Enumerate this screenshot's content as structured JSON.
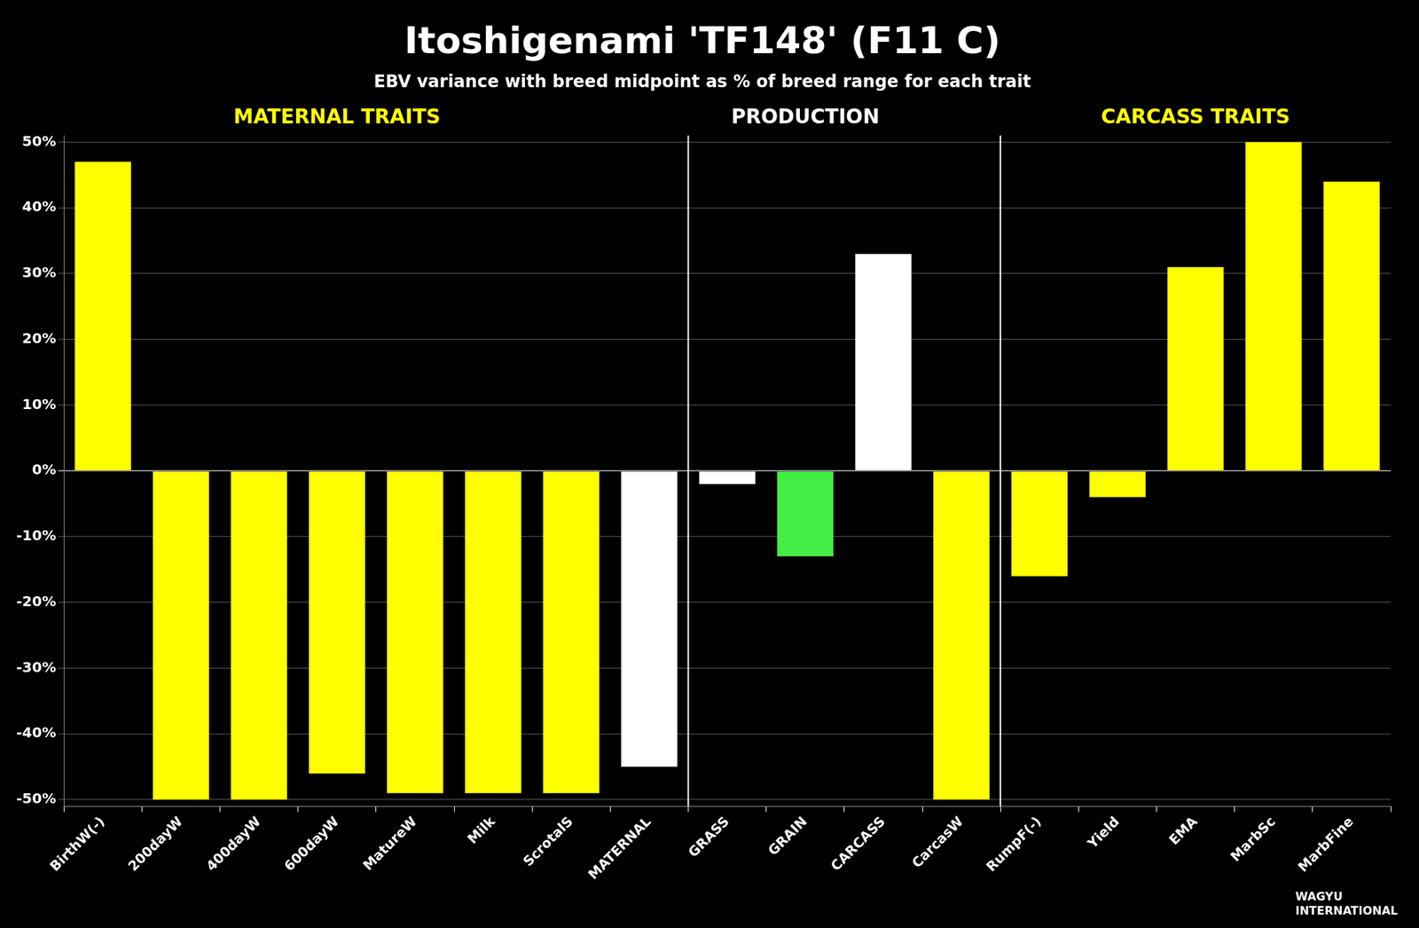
{
  "chart_data": {
    "type": "bar",
    "title": "Itoshigenami 'TF148' (F11 C)",
    "subtitle": "EBV variance with breed midpoint as % of breed range for each trait",
    "categories": [
      "BirthW(-)",
      "200dayW",
      "400dayW",
      "600dayW",
      "MatureW",
      "Milk",
      "ScrotalS",
      "MATERNAL",
      "GRASS",
      "GRAIN",
      "CARCASS",
      "CarcasW",
      "RumpF(-)",
      "Yield",
      "EMA",
      "MarbSc",
      "MarbFine"
    ],
    "values": [
      47,
      -50,
      -50,
      -46,
      -49,
      -49,
      -49,
      -45,
      -2,
      -13,
      33,
      -50,
      -16,
      -4,
      31,
      50,
      44
    ],
    "colors": [
      "#FFFF00",
      "#FFFF00",
      "#FFFF00",
      "#FFFF00",
      "#FFFF00",
      "#FFFF00",
      "#FFFF00",
      "#FFFFFF",
      "#FFFFFF",
      "#44EE44",
      "#FFFFFF",
      "#FFFF00",
      "#FFFF00",
      "#FFFF00",
      "#FFFF00",
      "#FFFF00",
      "#FFFF00"
    ],
    "ylim": [
      -51,
      51
    ],
    "yticks": [
      {
        "value": -50,
        "label": "-50%"
      },
      {
        "value": -40,
        "label": "-40%"
      },
      {
        "value": -30,
        "label": "-30%"
      },
      {
        "value": -20,
        "label": "-20%"
      },
      {
        "value": -10,
        "label": "-10%"
      },
      {
        "value": 0,
        "label": "0%"
      },
      {
        "value": 10,
        "label": "10%"
      },
      {
        "value": 20,
        "label": "20%"
      },
      {
        "value": 30,
        "label": "30%"
      },
      {
        "value": 40,
        "label": "40%"
      },
      {
        "value": 50,
        "label": "50%"
      }
    ],
    "grid": true,
    "annotations": [
      {
        "text": "MATERNAL TRAITS",
        "x": "600dayW",
        "color": "#FFFF00"
      },
      {
        "text": "PRODUCTION",
        "x": "GRAIN",
        "color": "#FFFFFF"
      },
      {
        "text": "CARCASS TRAITS",
        "x": "EMA",
        "color": "#FFFF00"
      },
      {
        "text": "WAGYU\nINTERNATIONAL",
        "color": "#FFFFFF"
      }
    ]
  }
}
